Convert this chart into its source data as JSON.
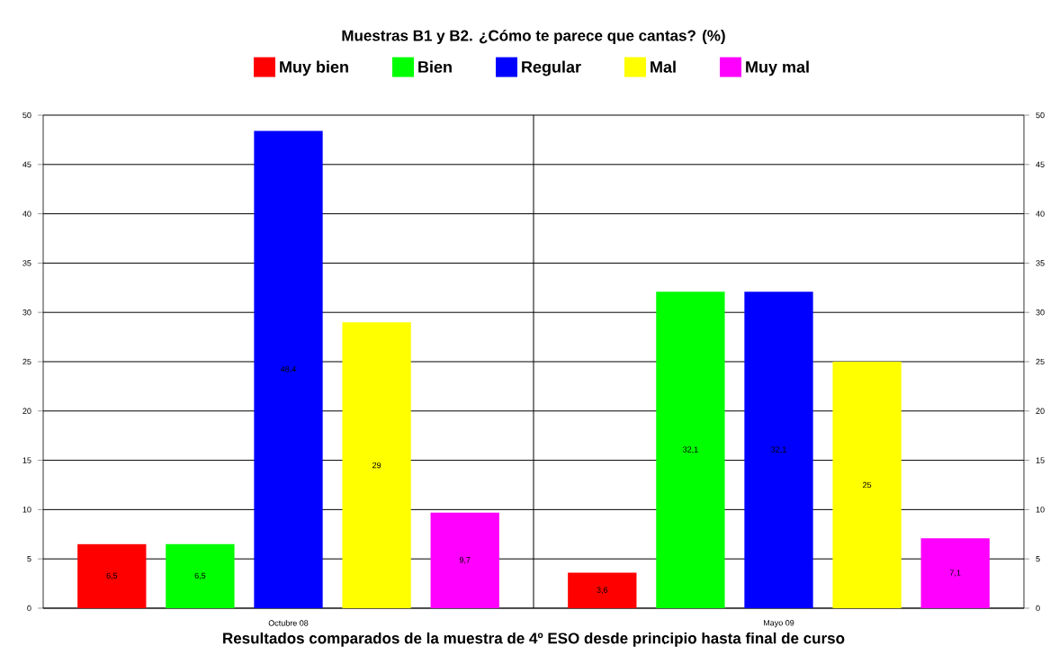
{
  "chart_data": {
    "type": "bar",
    "title": "Muestras B1 y B2. ¿Cómo te parece que cantas? (%)",
    "xlabel": "Resultados comparados de la muestra de 4º ESO desde principio hasta final de curso",
    "categories": [
      "Octubre 08",
      "Mayo 09"
    ],
    "series": [
      {
        "name": "Muy bien",
        "color": "#ff0000",
        "values": [
          6.5,
          3.6
        ],
        "value_labels": [
          "6,5",
          "3,6"
        ]
      },
      {
        "name": "Bien",
        "color": "#00ff00",
        "values": [
          6.5,
          32.1
        ],
        "value_labels": [
          "6,5",
          "32,1"
        ]
      },
      {
        "name": "Regular",
        "color": "#0000ff",
        "values": [
          48.4,
          32.1
        ],
        "value_labels": [
          "48,4",
          "32,1"
        ]
      },
      {
        "name": "Mal",
        "color": "#ffff00",
        "values": [
          29,
          25
        ],
        "value_labels": [
          "29",
          "25"
        ]
      },
      {
        "name": "Muy mal",
        "color": "#ff00ff",
        "values": [
          9.7,
          7.1
        ],
        "value_labels": [
          "9,7",
          "7,1"
        ]
      }
    ],
    "ylim": [
      0,
      50
    ],
    "yticks": [
      0,
      5,
      10,
      15,
      20,
      25,
      30,
      35,
      40,
      45,
      50
    ],
    "y2lim": [
      0,
      50
    ],
    "y2ticks": [
      0,
      5,
      10,
      15,
      20,
      25,
      30,
      35,
      40,
      45,
      50
    ],
    "grid": "y",
    "legend": "top"
  }
}
